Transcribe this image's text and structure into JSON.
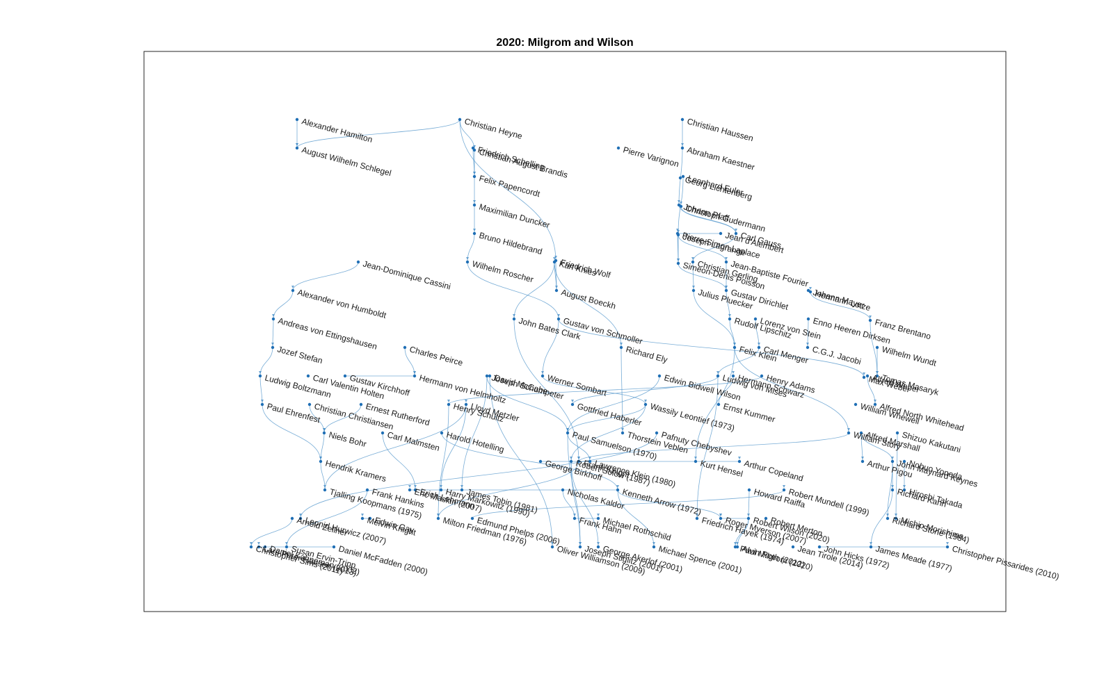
{
  "title": "2020: Milgrom and Wilson",
  "colors": {
    "edge": "#4a90c8",
    "node": "#1f6fb5",
    "text": "#1a1a1a"
  },
  "nodes": [
    {
      "id": "Alexander Hamilton",
      "label": "Alexander Hamilton"
    },
    {
      "id": "August Wilhelm Schlegel",
      "label": "August Wilhelm Schlegel"
    },
    {
      "id": "Christian Heyne",
      "label": "Christian Heyne"
    },
    {
      "id": "Friedrich Schelling",
      "label": "Friedrich Schelling"
    },
    {
      "id": "Christian August Brandis",
      "label": "Christian August Brandis"
    },
    {
      "id": "Felix Papencordt",
      "label": "Felix Papencordt"
    },
    {
      "id": "Maximilian Duncker",
      "label": "Maximilian Duncker"
    },
    {
      "id": "Bruno Hildebrand",
      "label": "Bruno Hildebrand"
    },
    {
      "id": "Karl Knies",
      "label": "Karl Knies"
    },
    {
      "id": "Friedrich Wolf",
      "label": "Friedrich Wolf"
    },
    {
      "id": "Wilhelm Roscher",
      "label": "Wilhelm Roscher"
    },
    {
      "id": "Pierre Varignon",
      "label": "Pierre Varignon"
    },
    {
      "id": "Christian Haussen",
      "label": "Christian Haussen"
    },
    {
      "id": "Abraham Kaestner",
      "label": "Abraham Kaestner"
    },
    {
      "id": "Leonhard Euler",
      "label": "Leonhard Euler"
    },
    {
      "id": "Georg Lichtenberg",
      "label": "Georg Lichtenberg"
    },
    {
      "id": "Johann Pfaff",
      "label": "Johann Pfaff"
    },
    {
      "id": "Jean d'Alembert",
      "label": "Jean d'Alembert"
    },
    {
      "id": "Christoph Gudermann",
      "label": "Christoph Gudermann"
    },
    {
      "id": "Carl Gauss",
      "label": "Carl Gauss"
    },
    {
      "id": "Pierre-Simon Laplace",
      "label": "Pierre-Simon Laplace"
    },
    {
      "id": "Joseph Lagrange",
      "label": "Joseph Lagrange"
    },
    {
      "id": "Jean-Baptiste Fourier",
      "label": "Jean-Baptiste Fourier"
    },
    {
      "id": "Christian Gerling",
      "label": "Christian Gerling"
    },
    {
      "id": "Simeon-Denis Poisson",
      "label": "Simeon-Denis Poisson"
    },
    {
      "id": "Julius Pluecker",
      "label": "Julius Pluecker"
    },
    {
      "id": "Gustav Dirichlet",
      "label": "Gustav Dirichlet"
    },
    {
      "id": "Rudolf Lipschitz",
      "label": "Rudolf Lipschitz"
    },
    {
      "id": "Johann Mayer",
      "label": "Johann Mayer"
    },
    {
      "id": "Hermann Lotze",
      "label": "Hermann Lotze"
    },
    {
      "id": "Lorenz von Stein",
      "label": "Lorenz von Stein"
    },
    {
      "id": "Enno Heeren Dirksen",
      "label": "Enno Heeren Dirksen"
    },
    {
      "id": "Wilhelm Wundt",
      "label": "Wilhelm Wundt"
    },
    {
      "id": "Franz Brentano",
      "label": "Franz Brentano"
    },
    {
      "id": "C.G.J. Jacobi",
      "label": "C.G.J. Jacobi"
    },
    {
      "id": "Tomas Masaryk",
      "label": "Tomas Masaryk"
    },
    {
      "id": "Jean-Dominique Cassini",
      "label": "Jean-Dominique Cassini"
    },
    {
      "id": "August Boeckh",
      "label": "August Boeckh"
    },
    {
      "id": "Alexander von Humboldt",
      "label": "Alexander von Humboldt"
    },
    {
      "id": "John Bates Clark",
      "label": "John Bates Clark"
    },
    {
      "id": "Richard Ely",
      "label": "Richard Ely"
    },
    {
      "id": "Gustav von Schmoller",
      "label": "Gustav von Schmoller"
    },
    {
      "id": "Andreas von Ettingshausen",
      "label": "Andreas von Ettingshausen"
    },
    {
      "id": "Jozef Stefan",
      "label": "Jozef Stefan"
    },
    {
      "id": "Felix Klein",
      "label": "Felix Klein"
    },
    {
      "id": "Carl Menger",
      "label": "Carl Menger"
    },
    {
      "id": "William Story",
      "label": "William Story"
    },
    {
      "id": "Alfred Weber",
      "label": "Alfred Weber"
    },
    {
      "id": "Alfred North Whitehead",
      "label": "Alfred North Whitehead"
    },
    {
      "id": "Max Weber",
      "label": "Max Weber"
    },
    {
      "id": "Ludwig Boltzmann",
      "label": "Ludwig Boltzmann"
    },
    {
      "id": "Paul Ehrenfest",
      "label": "Paul Ehrenfest"
    },
    {
      "id": "Carl Valentin Holten",
      "label": "Carl Valentin Holten"
    },
    {
      "id": "Christian Christiansen",
      "label": "Christian Christiansen"
    },
    {
      "id": "Niels Bohr",
      "label": "Niels Bohr"
    },
    {
      "id": "Ernest Rutherford",
      "label": "Ernest Rutherford"
    },
    {
      "id": "Carl Malmsten",
      "label": "Carl Malmsten"
    },
    {
      "id": "Hendrik Kramers",
      "label": "Hendrik Kramers"
    },
    {
      "id": "Tjalling Koopmans (1975)",
      "label": "Tjalling Koopmans (1975)"
    },
    {
      "id": "Lloyd Metzler",
      "label": "Lloyd Metzler"
    },
    {
      "id": "Harry Markowitz (1990)",
      "label": "Harry Markowitz (1990)"
    },
    {
      "id": "Frank Knight",
      "label": "Frank Knight"
    },
    {
      "id": "Gottfried Haberler",
      "label": "Gottfried Haberler"
    },
    {
      "id": "Paul Samuelson (1970)",
      "label": "Paul Samuelson (1970)"
    },
    {
      "id": "Thorstein Veblen",
      "label": "Thorstein Veblen"
    },
    {
      "id": "Pafnuty Chebyshev",
      "label": "Pafnuty Chebyshev"
    },
    {
      "id": "Robert Solow (1987)",
      "label": "Robert Solow (1987)"
    },
    {
      "id": "Lawrence Klein (1980)",
      "label": "Lawrence Klein (1980)"
    },
    {
      "id": "Kenneth Arrow (1972)",
      "label": "Kenneth Arrow (1972)"
    },
    {
      "id": "Nicholas Kaldor",
      "label": "Nicholas Kaldor"
    },
    {
      "id": "Frank Hahn",
      "label": "Frank Hahn"
    },
    {
      "id": "Joseph Stiglitz (2001)",
      "label": "Joseph Stiglitz (2001)"
    },
    {
      "id": "George Akerlof (2001)",
      "label": "George Akerlof (2001)"
    },
    {
      "id": "Michael Spence (2001)",
      "label": "Michael Spence (2001)"
    },
    {
      "id": "Eric Maskin (2007)",
      "label": "Eric Maskin (2007)"
    },
    {
      "id": "Roger Myerson (2007)",
      "label": "Roger Myerson (2007)"
    },
    {
      "id": "Leonid Hurwicz (2007)",
      "label": "Leonid Hurwicz (2007)"
    },
    {
      "id": "James Tobin (1981)",
      "label": "James Tobin (1981)"
    },
    {
      "id": "Frank Hankins",
      "label": "Frank Hankins"
    },
    {
      "id": "Milton Friedman (1976)",
      "label": "Milton Friedman (1976)"
    },
    {
      "id": "Edmund Phelps (2006)",
      "label": "Edmund Phelps (2006)"
    },
    {
      "id": "Robert Mundell (1999)",
      "label": "Robert Mundell (1999)"
    },
    {
      "id": "Robert Wilson (2020)",
      "label": "Robert Wilson (2020)"
    },
    {
      "id": "Paul Milgrom (2020)",
      "label": "Paul Milgrom (2020)"
    },
    {
      "id": "Alvin Roth (2012)",
      "label": "Alvin Roth (2012)"
    },
    {
      "id": "Robert Merton",
      "label": "Robert Merton"
    },
    {
      "id": "Michael Rothschild",
      "label": "Michael Rothschild"
    },
    {
      "id": "Arnold Zellner",
      "label": "Arnold Zellner"
    },
    {
      "id": "Oliver Williamson (2009)",
      "label": "Oliver Williamson (2009)"
    },
    {
      "id": "Daniel McFadden (2000)",
      "label": "Daniel McFadden (2000)"
    },
    {
      "id": "Daniel Kahneman (2002)",
      "label": "Daniel Kahneman (2002)"
    },
    {
      "id": "Lars Peter Hansen (2013)",
      "label": "Lars Peter Hansen (2013)"
    },
    {
      "id": "Christopher Sims (2011)",
      "label": "Christopher Sims (2011)"
    },
    {
      "id": "Jean Tirole (2014)",
      "label": "Jean Tirole (2014)"
    },
    {
      "id": "Richard Stone (1984)",
      "label": "Richard Stone (1984)"
    },
    {
      "id": "Christopher Pissarides (2010)",
      "label": "Christopher Pissarides (2010)"
    },
    {
      "id": "James Meade (1977)",
      "label": "James Meade (1977)"
    },
    {
      "id": "John Hicks (1972)",
      "label": "John Hicks (1972)"
    },
    {
      "id": "John Maynard Keynes",
      "label": "John Maynard Keynes"
    },
    {
      "id": "Michio Morishima",
      "label": "Michio Morishima"
    },
    {
      "id": "Shizuo Kakutani",
      "label": "Shizuo Kakutani"
    },
    {
      "id": "Nobuo Yoneda",
      "label": "Nobuo Yoneda"
    },
    {
      "id": "Hiroshi Takada",
      "label": "Hiroshi Takada"
    },
    {
      "id": "Richard Kahn",
      "label": "Richard Kahn"
    },
    {
      "id": "Alfred Marshall",
      "label": "Alfred Marshall"
    },
    {
      "id": "Arthur Pigou",
      "label": "Arthur Pigou"
    },
    {
      "id": "William Whewell",
      "label": "William Whewell"
    },
    {
      "id": "Howard Raiffa",
      "label": "Howard Raiffa"
    },
    {
      "id": "Henry Schultz",
      "label": "Henry Schultz"
    },
    {
      "id": "Harold Hotelling",
      "label": "Harold Hotelling"
    },
    {
      "id": "Joseph Schumpeter",
      "label": "Joseph Schumpeter"
    },
    {
      "id": "Wassily Leontief (1973)",
      "label": "Wassily Leontief (1973)"
    },
    {
      "id": "George Birkhoff",
      "label": "George Birkhoff"
    },
    {
      "id": "Werner Sombart",
      "label": "Werner Sombart"
    },
    {
      "id": "David McCabe",
      "label": "David McCabe"
    },
    {
      "id": "Ernst Kummer",
      "label": "Ernst Kummer"
    },
    {
      "id": "Hermann Schwarz",
      "label": "Hermann Schwarz"
    },
    {
      "id": "Henry Adams",
      "label": "Henry Adams"
    },
    {
      "id": "Edwin Bidwell Wilson",
      "label": "Edwin Bidwell Wilson"
    },
    {
      "id": "Charles Peirce",
      "label": "Charles Peirce"
    },
    {
      "id": "Hermann von Helmholtz",
      "label": "Hermann von Helmholtz"
    },
    {
      "id": "Gustav Kirchhoff",
      "label": "Gustav Kirchhoff"
    },
    {
      "id": "Ludwig von Mises",
      "label": "Ludwig von Mises"
    },
    {
      "id": "Friedrich Hayek (1974)",
      "label": "Friedrich Hayek (1974)"
    },
    {
      "id": "Kurt Hensel",
      "label": "Kurt Hensel"
    },
    {
      "id": "Arthur Copeland",
      "label": "Arthur Copeland"
    },
    {
      "id": "Melvin Knight",
      "label": "Melvin Knight"
    },
    {
      "id": "Susan Ervin-Tripp",
      "label": "Susan Ervin-Tripp"
    },
    {
      "id": "Edwin Gay",
      "label": "Edwin Gay"
    },
    {
      "id": "Erich Lehmann",
      "label": "Erich Lehmann"
    }
  ],
  "edges": [
    [
      "Alexander Hamilton",
      "August Wilhelm Schlegel"
    ],
    [
      "Christian Heyne",
      "August Wilhelm Schlegel"
    ],
    [
      "Christian Heyne",
      "Friedrich Wolf"
    ],
    [
      "Christian Heyne",
      "Christian August Brandis"
    ],
    [
      "Friedrich Schelling",
      "Felix Papencordt"
    ],
    [
      "Christian August Brandis",
      "Felix Papencordt"
    ],
    [
      "Felix Papencordt",
      "Maximilian Duncker"
    ],
    [
      "Maximilian Duncker",
      "Bruno Hildebrand"
    ],
    [
      "Bruno Hildebrand",
      "Wilhelm Roscher"
    ],
    [
      "Karl Knies",
      "John Bates Clark"
    ],
    [
      "Karl Knies",
      "Richard Ely"
    ],
    [
      "Friedrich Wolf",
      "August Boeckh"
    ],
    [
      "Wilhelm Roscher",
      "Gustav von Schmoller"
    ],
    [
      "Christian Haussen",
      "Abraham Kaestner"
    ],
    [
      "Abraham Kaestner",
      "Johann Pfaff"
    ],
    [
      "Leonhard Euler",
      "Joseph Lagrange"
    ],
    [
      "Jean d'Alembert",
      "Pierre-Simon Laplace"
    ],
    [
      "Johann Pfaff",
      "Carl Gauss"
    ],
    [
      "Joseph Lagrange",
      "Simeon-Denis Poisson"
    ],
    [
      "Joseph Lagrange",
      "Jean-Baptiste Fourier"
    ],
    [
      "Pierre-Simon Laplace",
      "Simeon-Denis Poisson"
    ],
    [
      "Carl Gauss",
      "Christian Gerling"
    ],
    [
      "Carl Gauss",
      "Christoph Gudermann"
    ],
    [
      "Christian Gerling",
      "Julius Pluecker"
    ],
    [
      "Simeon-Denis Poisson",
      "Gustav Dirichlet"
    ],
    [
      "Jean-Baptiste Fourier",
      "Gustav Dirichlet"
    ],
    [
      "Gustav Dirichlet",
      "Rudolf Lipschitz"
    ],
    [
      "Julius Pluecker",
      "Felix Klein"
    ],
    [
      "Rudolf Lipschitz",
      "Felix Klein"
    ],
    [
      "Johann Mayer",
      "Hermann Lotze"
    ],
    [
      "Hermann Lotze",
      "Franz Brentano"
    ],
    [
      "Enno Heeren Dirksen",
      "C.G.J. Jacobi"
    ],
    [
      "Franz Brentano",
      "Tomas Masaryk"
    ],
    [
      "Wilhelm Wundt",
      "Tomas Masaryk"
    ],
    [
      "Jean-Dominique Cassini",
      "Alexander von Humboldt"
    ],
    [
      "Alexander von Humboldt",
      "Andreas von Ettingshausen"
    ],
    [
      "Andreas von Ettingshausen",
      "Jozef Stefan"
    ],
    [
      "Jozef Stefan",
      "Ludwig Boltzmann"
    ],
    [
      "Ludwig Boltzmann",
      "Paul Ehrenfest"
    ],
    [
      "Paul Ehrenfest",
      "Hendrik Kramers"
    ],
    [
      "Christian Christiansen",
      "Niels Bohr"
    ],
    [
      "Niels Bohr",
      "Hendrik Kramers"
    ],
    [
      "Ernest Rutherford",
      "Niels Bohr"
    ],
    [
      "Hendrik Kramers",
      "Tjalling Koopmans (1975)"
    ],
    [
      "Felix Klein",
      "William Story"
    ],
    [
      "Felix Klein",
      "Kurt Hensel"
    ],
    [
      "William Story",
      "Frank Knight"
    ],
    [
      "Carl Menger",
      "Ludwig von Mises"
    ],
    [
      "Ludwig von Mises",
      "Gottfried Haberler"
    ],
    [
      "Ludwig von Mises",
      "Friedrich Hayek (1974)"
    ],
    [
      "Gustav von Schmoller",
      "Werner Sombart"
    ],
    [
      "Gustav von Schmoller",
      "Max Weber"
    ],
    [
      "Werner Sombart",
      "Wassily Leontief (1973)"
    ],
    [
      "John Bates Clark",
      "Frank Knight"
    ],
    [
      "Richard Ely",
      "Thorstein Veblen"
    ],
    [
      "Frank Knight",
      "Milton Friedman (1976)"
    ],
    [
      "Henry Schultz",
      "Milton Friedman (1976)"
    ],
    [
      "Harold Hotelling",
      "Kenneth Arrow (1972)"
    ],
    [
      "Joseph Schumpeter",
      "Paul Samuelson (1970)"
    ],
    [
      "Joseph Schumpeter",
      "James Tobin (1981)"
    ],
    [
      "Wassily Leontief (1973)",
      "Paul Samuelson (1970)"
    ],
    [
      "Wassily Leontief (1973)",
      "Robert Solow (1987)"
    ],
    [
      "Edwin Bidwell Wilson",
      "Paul Samuelson (1970)"
    ],
    [
      "Paul Samuelson (1970)",
      "Lawrence Klein (1980)"
    ],
    [
      "Paul Samuelson (1970)",
      "Joseph Stiglitz (2001)"
    ],
    [
      "Robert Solow (1987)",
      "George Akerlof (2001)"
    ],
    [
      "Robert Solow (1987)",
      "Joseph Stiglitz (2001)"
    ],
    [
      "Kenneth Arrow (1972)",
      "Eric Maskin (2007)"
    ],
    [
      "Kenneth Arrow (1972)",
      "Michael Spence (2001)"
    ],
    [
      "Kenneth Arrow (1972)",
      "Roger Myerson (2007)"
    ],
    [
      "Howard Raiffa",
      "Robert Wilson (2020)"
    ],
    [
      "Robert Wilson (2020)",
      "Paul Milgrom (2020)"
    ],
    [
      "Robert Wilson (2020)",
      "Alvin Roth (2012)"
    ],
    [
      "Robert Wilson (2020)",
      "Roger Myerson (2007)"
    ],
    [
      "Tjalling Koopmans (1975)",
      "Lloyd Metzler"
    ],
    [
      "Lloyd Metzler",
      "Harry Markowitz (1990)"
    ],
    [
      "Nicholas Kaldor",
      "Frank Hahn"
    ],
    [
      "Frank Hahn",
      "Michael Rothschild"
    ],
    [
      "Alfred Marshall",
      "Arthur Pigou"
    ],
    [
      "Alfred Marshall",
      "John Maynard Keynes"
    ],
    [
      "John Maynard Keynes",
      "Richard Stone (1984)"
    ],
    [
      "John Maynard Keynes",
      "Richard Kahn"
    ],
    [
      "Richard Kahn",
      "James Meade (1977)"
    ],
    [
      "John Hicks (1972)",
      "Christopher Pissarides (2010)"
    ],
    [
      "Shizuo Kakutani",
      "Michio Morishima"
    ],
    [
      "Nobuo Yoneda",
      "Hiroshi Takada"
    ],
    [
      "Daniel McFadden (2000)",
      "Lars Peter Hansen (2013)"
    ],
    [
      "Arnold Zellner",
      "Christopher Sims (2011)"
    ],
    [
      "Edmund Phelps (2006)",
      "Robert Mundell (1999)"
    ],
    [
      "Frank Hankins",
      "Susan Ervin-Tripp"
    ],
    [
      "Carl Malmsten",
      "Erich Lehmann"
    ],
    [
      "Edwin Gay",
      "Melvin Knight"
    ],
    [
      "George Birkhoff",
      "Arthur Copeland"
    ],
    [
      "Charles Peirce",
      "Hermann von Helmholtz"
    ],
    [
      "Gustav Kirchhoff",
      "Hermann von Helmholtz"
    ],
    [
      "Ernst Kummer",
      "Hermann Schwarz"
    ],
    [
      "Henry Adams",
      "Henry Schultz"
    ],
    [
      "David McCabe",
      "Oliver Williamson (2009)"
    ],
    [
      "Pafnuty Chebyshev",
      "Leonid Hurwicz (2007)"
    ],
    [
      "Alfred Weber",
      "Alfred North Whitehead"
    ],
    [
      "Lorenz von Stein",
      "Carl Menger"
    ],
    [
      "August Boeckh",
      "Karl Knies"
    ]
  ]
}
